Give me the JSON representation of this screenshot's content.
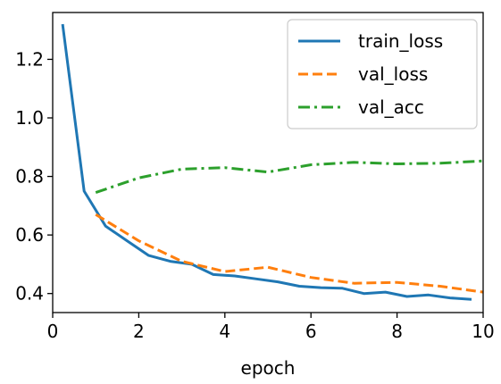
{
  "chart_data": {
    "type": "line",
    "title": "",
    "xlabel": "epoch",
    "ylabel": "",
    "xlim": [
      0,
      10
    ],
    "ylim": [
      0.335,
      1.36
    ],
    "xticks": [
      0,
      2,
      4,
      6,
      8,
      10
    ],
    "yticks": [
      0.4,
      0.6,
      0.8,
      1.0,
      1.2
    ],
    "xtick_labels": [
      "0",
      "2",
      "4",
      "6",
      "8",
      "10"
    ],
    "ytick_labels": [
      "0.4",
      "0.6",
      "0.8",
      "1.0",
      "1.2"
    ],
    "grid": false,
    "legend_position": "top-right",
    "series": [
      {
        "name": "train_loss",
        "color": "#1f77b4",
        "dash": "solid",
        "x": [
          0.23,
          0.73,
          1.23,
          1.73,
          2.23,
          2.73,
          3.23,
          3.73,
          4.23,
          4.73,
          5.23,
          5.73,
          6.23,
          6.73,
          7.23,
          7.73,
          8.23,
          8.73,
          9.23,
          9.73
        ],
        "y": [
          1.32,
          0.75,
          0.63,
          0.58,
          0.53,
          0.51,
          0.5,
          0.465,
          0.46,
          0.45,
          0.44,
          0.425,
          0.42,
          0.418,
          0.4,
          0.405,
          0.39,
          0.395,
          0.385,
          0.38
        ]
      },
      {
        "name": "val_loss",
        "color": "#ff7f0e",
        "dash": "dashed",
        "x": [
          1,
          2,
          3,
          4,
          5,
          6,
          7,
          8,
          9,
          10
        ],
        "y": [
          0.67,
          0.58,
          0.51,
          0.475,
          0.49,
          0.455,
          0.435,
          0.438,
          0.425,
          0.405
        ]
      },
      {
        "name": "val_acc",
        "color": "#2ca02c",
        "dash": "dashdot",
        "x": [
          1,
          2,
          3,
          4,
          5,
          6,
          7,
          8,
          9,
          10
        ],
        "y": [
          0.745,
          0.795,
          0.825,
          0.83,
          0.815,
          0.84,
          0.848,
          0.843,
          0.845,
          0.853
        ]
      }
    ]
  }
}
